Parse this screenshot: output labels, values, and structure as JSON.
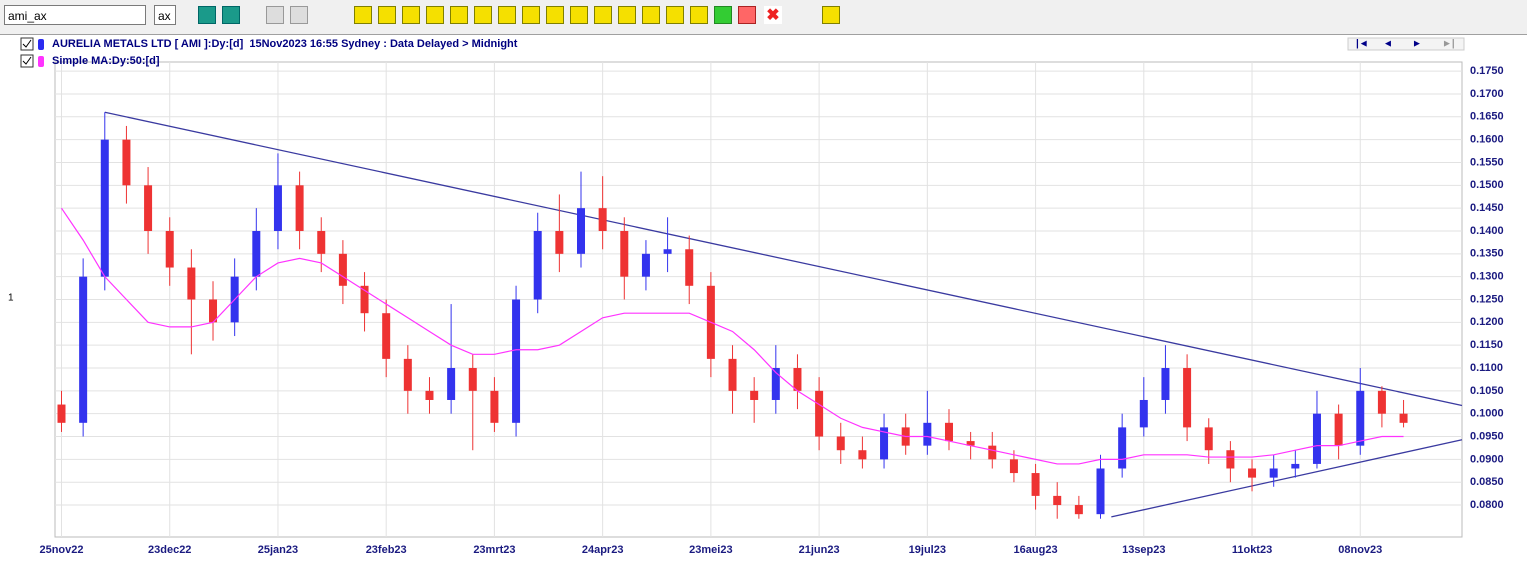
{
  "toolbar": {
    "symbol": "ami_ax",
    "period": "ax"
  },
  "chart_data": {
    "type": "candlestick",
    "side_label": "1",
    "categories": [
      "25nov22",
      null,
      null,
      null,
      null,
      "23dec22",
      null,
      null,
      null,
      null,
      "25jan23",
      null,
      null,
      null,
      null,
      "23feb23",
      null,
      null,
      null,
      null,
      "23mrt23",
      null,
      null,
      null,
      null,
      "24apr23",
      null,
      null,
      null,
      null,
      "23mei23",
      null,
      null,
      null,
      null,
      "21jun23",
      null,
      null,
      null,
      null,
      "19jul23",
      null,
      null,
      null,
      null,
      "16aug23",
      null,
      null,
      null,
      null,
      "13sep23",
      null,
      null,
      null,
      null,
      "11okt23",
      null,
      null,
      null,
      null,
      "08nov23",
      null,
      null
    ],
    "xlim": [
      -0.3,
      64.7
    ],
    "ylim": [
      0.073,
      0.177
    ],
    "yticks": [
      {
        "value": 0.08,
        "label": "0.0800"
      },
      {
        "value": 0.085,
        "label": "0.0850"
      },
      {
        "value": 0.09,
        "label": "0.0900"
      },
      {
        "value": 0.095,
        "label": "0.0950"
      },
      {
        "value": 0.1,
        "label": "0.1000"
      },
      {
        "value": 0.105,
        "label": "0.1050"
      },
      {
        "value": 0.11,
        "label": "0.1100"
      },
      {
        "value": 0.115,
        "label": "0.1150"
      },
      {
        "value": 0.12,
        "label": "0.1200"
      },
      {
        "value": 0.125,
        "label": "0.1250"
      },
      {
        "value": 0.13,
        "label": "0.1300"
      },
      {
        "value": 0.135,
        "label": "0.1350"
      },
      {
        "value": 0.14,
        "label": "0.1400"
      },
      {
        "value": 0.145,
        "label": "0.1450"
      },
      {
        "value": 0.15,
        "label": "0.1500"
      },
      {
        "value": 0.155,
        "label": "0.1550"
      },
      {
        "value": 0.16,
        "label": "0.1600"
      },
      {
        "value": 0.165,
        "label": "0.1650"
      },
      {
        "value": 0.17,
        "label": "0.1700"
      },
      {
        "value": 0.175,
        "label": "0.1750"
      }
    ],
    "grid": true,
    "series": [
      {
        "name": "AURELIA METALS LTD [ AMI ]:Dy:[d]  15Nov2023 16:55 Sydney : Data Delayed > Midnight",
        "type": "candlestick",
        "color": "#2b2bf0",
        "up_color": "#3333ee",
        "down_color": "#ee3333",
        "open": [
          0.102,
          0.098,
          0.13,
          0.16,
          0.15,
          0.14,
          0.132,
          0.125,
          0.12,
          0.13,
          0.14,
          0.15,
          0.14,
          0.135,
          0.128,
          0.122,
          0.112,
          0.105,
          0.103,
          0.11,
          0.105,
          0.098,
          0.125,
          0.14,
          0.135,
          0.145,
          0.14,
          0.13,
          0.135,
          0.136,
          0.128,
          0.112,
          0.105,
          0.103,
          0.11,
          0.105,
          0.095,
          0.092,
          0.09,
          0.097,
          0.093,
          0.098,
          0.094,
          0.093,
          0.09,
          0.087,
          0.082,
          0.08,
          0.078,
          0.088,
          0.097,
          0.103,
          0.11,
          0.097,
          0.092,
          0.088,
          0.086,
          0.088,
          0.089,
          0.1,
          0.093,
          0.105,
          0.1
        ],
        "high": [
          0.105,
          0.134,
          0.166,
          0.163,
          0.154,
          0.143,
          0.136,
          0.129,
          0.134,
          0.145,
          0.157,
          0.153,
          0.143,
          0.138,
          0.131,
          0.125,
          0.115,
          0.108,
          0.124,
          0.113,
          0.108,
          0.128,
          0.144,
          0.148,
          0.153,
          0.152,
          0.143,
          0.138,
          0.143,
          0.139,
          0.131,
          0.115,
          0.108,
          0.115,
          0.113,
          0.108,
          0.098,
          0.095,
          0.1,
          0.1,
          0.105,
          0.101,
          0.096,
          0.096,
          0.092,
          0.089,
          0.085,
          0.082,
          0.091,
          0.1,
          0.108,
          0.115,
          0.113,
          0.099,
          0.094,
          0.09,
          0.091,
          0.092,
          0.105,
          0.102,
          0.11,
          0.106,
          0.103
        ],
        "low": [
          0.096,
          0.095,
          0.127,
          0.146,
          0.135,
          0.128,
          0.113,
          0.116,
          0.117,
          0.127,
          0.136,
          0.136,
          0.131,
          0.124,
          0.118,
          0.108,
          0.1,
          0.1,
          0.1,
          0.092,
          0.096,
          0.095,
          0.122,
          0.131,
          0.132,
          0.136,
          0.125,
          0.127,
          0.131,
          0.124,
          0.108,
          0.1,
          0.098,
          0.1,
          0.101,
          0.092,
          0.089,
          0.088,
          0.088,
          0.091,
          0.091,
          0.092,
          0.09,
          0.088,
          0.085,
          0.079,
          0.077,
          0.077,
          0.077,
          0.086,
          0.095,
          0.1,
          0.094,
          0.089,
          0.085,
          0.083,
          0.084,
          0.086,
          0.088,
          0.09,
          0.091,
          0.097,
          0.097
        ],
        "close": [
          0.098,
          0.13,
          0.16,
          0.15,
          0.14,
          0.132,
          0.125,
          0.12,
          0.13,
          0.14,
          0.15,
          0.14,
          0.135,
          0.128,
          0.122,
          0.112,
          0.105,
          0.103,
          0.11,
          0.105,
          0.098,
          0.125,
          0.14,
          0.135,
          0.145,
          0.14,
          0.13,
          0.135,
          0.136,
          0.128,
          0.112,
          0.105,
          0.103,
          0.11,
          0.105,
          0.095,
          0.092,
          0.09,
          0.097,
          0.093,
          0.098,
          0.094,
          0.093,
          0.09,
          0.087,
          0.082,
          0.08,
          0.078,
          0.088,
          0.097,
          0.103,
          0.11,
          0.097,
          0.092,
          0.088,
          0.086,
          0.088,
          0.089,
          0.1,
          0.093,
          0.105,
          0.1,
          0.098
        ]
      },
      {
        "name": "Simple MA:Dy:50:[d]",
        "type": "line",
        "color": "#ff33ff",
        "values": [
          0.145,
          0.138,
          0.13,
          0.125,
          0.12,
          0.119,
          0.119,
          0.12,
          0.125,
          0.13,
          0.133,
          0.134,
          0.133,
          0.13,
          0.127,
          0.124,
          0.121,
          0.118,
          0.115,
          0.113,
          0.113,
          0.114,
          0.114,
          0.115,
          0.118,
          0.121,
          0.122,
          0.122,
          0.122,
          0.122,
          0.12,
          0.118,
          0.114,
          0.109,
          0.105,
          0.102,
          0.099,
          0.097,
          0.096,
          0.095,
          0.095,
          0.094,
          0.093,
          0.092,
          0.091,
          0.09,
          0.089,
          0.089,
          0.09,
          0.09,
          0.091,
          0.091,
          0.091,
          0.0905,
          0.0905,
          0.0905,
          0.091,
          0.092,
          0.093,
          0.093,
          0.094,
          0.095,
          0.095
        ]
      }
    ],
    "trendlines": [
      {
        "color": "#3a3aa0",
        "x": [
          2,
          64.7
        ],
        "y": [
          0.166,
          0.1018
        ]
      },
      {
        "color": "#3a3aa0",
        "x": [
          48.5,
          64.7
        ],
        "y": [
          0.0774,
          0.0943
        ]
      }
    ]
  }
}
